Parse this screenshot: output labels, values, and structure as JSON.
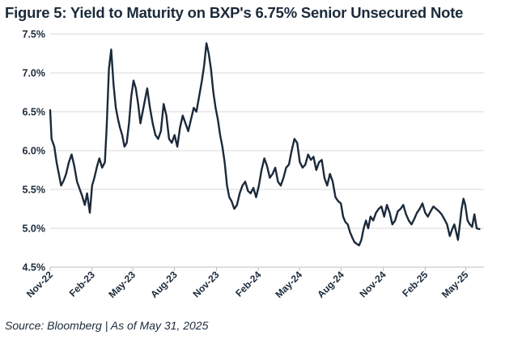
{
  "chart_data": {
    "type": "line",
    "title": "Figure 5: Yield to Maturity on BXP's 6.75% Senior Unsecured Note",
    "source": "Source: Bloomberg | As of May 31, 2025",
    "xlabel": "",
    "ylabel": "",
    "ylim": [
      4.5,
      7.5
    ],
    "yticks": [
      4.5,
      5.0,
      5.5,
      6.0,
      6.5,
      7.0,
      7.5
    ],
    "ytick_labels": [
      "4.5%",
      "5.0%",
      "5.5%",
      "6.0%",
      "6.5%",
      "7.0%",
      "7.5%"
    ],
    "xlim": [
      "2022-11-01",
      "2025-06-10"
    ],
    "xtick_dates": [
      "2022-11-01",
      "2023-02-01",
      "2023-05-01",
      "2023-08-01",
      "2023-11-01",
      "2024-02-01",
      "2024-05-01",
      "2024-08-01",
      "2024-11-01",
      "2025-02-01",
      "2025-05-01"
    ],
    "xtick_labels": [
      "Nov-22",
      "Feb-23",
      "May-23",
      "Aug-23",
      "Nov-23",
      "Feb-24",
      "May-24",
      "Aug-24",
      "Nov-24",
      "Feb-25",
      "May-25"
    ],
    "grid": "horizontal",
    "legend": "none",
    "line_color": "#1b2a3a",
    "series": [
      {
        "x": [
          "2022-11-01",
          "2022-11-04",
          "2022-11-10",
          "2022-11-15",
          "2022-11-20",
          "2022-11-25",
          "2022-12-01",
          "2022-12-06",
          "2022-12-12",
          "2022-12-18",
          "2022-12-24",
          "2022-12-30",
          "2023-01-05",
          "2023-01-10",
          "2023-01-16",
          "2023-01-21",
          "2023-01-27",
          "2023-02-01",
          "2023-02-06",
          "2023-02-12",
          "2023-02-17",
          "2023-02-23",
          "2023-03-01",
          "2023-03-05",
          "2023-03-10",
          "2023-03-15",
          "2023-03-20",
          "2023-03-25",
          "2023-03-30",
          "2023-04-03",
          "2023-04-08",
          "2023-04-13",
          "2023-04-18",
          "2023-04-23",
          "2023-04-28",
          "2023-05-03",
          "2023-05-08",
          "2023-05-13",
          "2023-05-18",
          "2023-05-23",
          "2023-05-28",
          "2023-06-02",
          "2023-06-08",
          "2023-06-14",
          "2023-06-20",
          "2023-06-26",
          "2023-07-02",
          "2023-07-08",
          "2023-07-14",
          "2023-07-20",
          "2023-07-26",
          "2023-08-01",
          "2023-08-07",
          "2023-08-13",
          "2023-08-19",
          "2023-08-25",
          "2023-08-31",
          "2023-09-06",
          "2023-09-12",
          "2023-09-18",
          "2023-09-24",
          "2023-09-30",
          "2023-10-05",
          "2023-10-10",
          "2023-10-15",
          "2023-10-20",
          "2023-10-25",
          "2023-10-30",
          "2023-11-04",
          "2023-11-09",
          "2023-11-14",
          "2023-11-19",
          "2023-11-24",
          "2023-11-29",
          "2023-12-04",
          "2023-12-10",
          "2023-12-16",
          "2023-12-22",
          "2023-12-28",
          "2024-01-03",
          "2024-01-09",
          "2024-01-15",
          "2024-01-21",
          "2024-01-27",
          "2024-02-02",
          "2024-02-08",
          "2024-02-14",
          "2024-02-20",
          "2024-02-26",
          "2024-03-03",
          "2024-03-09",
          "2024-03-15",
          "2024-03-21",
          "2024-03-27",
          "2024-04-02",
          "2024-04-08",
          "2024-04-14",
          "2024-04-20",
          "2024-04-26",
          "2024-05-02",
          "2024-05-08",
          "2024-05-14",
          "2024-05-20",
          "2024-05-26",
          "2024-06-01",
          "2024-06-07",
          "2024-06-13",
          "2024-06-19",
          "2024-06-25",
          "2024-07-01",
          "2024-07-07",
          "2024-07-13",
          "2024-07-19",
          "2024-07-25",
          "2024-07-31",
          "2024-08-05",
          "2024-08-10",
          "2024-08-15",
          "2024-08-20",
          "2024-08-25",
          "2024-08-30",
          "2024-09-04",
          "2024-09-09",
          "2024-09-14",
          "2024-09-19",
          "2024-09-24",
          "2024-09-29",
          "2024-10-04",
          "2024-10-10",
          "2024-10-16",
          "2024-10-22",
          "2024-10-28",
          "2024-11-03",
          "2024-11-09",
          "2024-11-15",
          "2024-11-21",
          "2024-11-27",
          "2024-12-03",
          "2024-12-09",
          "2024-12-15",
          "2024-12-21",
          "2024-12-27",
          "2025-01-02",
          "2025-01-08",
          "2025-01-14",
          "2025-01-20",
          "2025-01-26",
          "2025-02-01",
          "2025-02-07",
          "2025-02-13",
          "2025-02-19",
          "2025-02-25",
          "2025-03-03",
          "2025-03-09",
          "2025-03-15",
          "2025-03-21",
          "2025-03-27",
          "2025-04-02",
          "2025-04-06",
          "2025-04-10",
          "2025-04-14",
          "2025-04-18",
          "2025-04-22",
          "2025-04-26",
          "2025-04-30",
          "2025-05-05",
          "2025-05-10",
          "2025-05-15",
          "2025-05-20",
          "2025-05-25",
          "2025-05-31"
        ],
        "y": [
          6.52,
          6.15,
          6.05,
          5.85,
          5.7,
          5.55,
          5.62,
          5.7,
          5.85,
          5.95,
          5.8,
          5.6,
          5.5,
          5.42,
          5.3,
          5.45,
          5.2,
          5.55,
          5.65,
          5.8,
          5.9,
          5.78,
          5.85,
          6.3,
          7.05,
          7.3,
          6.85,
          6.55,
          6.4,
          6.3,
          6.2,
          6.05,
          6.1,
          6.35,
          6.7,
          6.9,
          6.8,
          6.6,
          6.35,
          6.5,
          6.65,
          6.8,
          6.55,
          6.35,
          6.2,
          6.15,
          6.25,
          6.6,
          6.45,
          6.15,
          6.1,
          6.2,
          6.05,
          6.3,
          6.45,
          6.35,
          6.25,
          6.4,
          6.55,
          6.5,
          6.7,
          6.9,
          7.1,
          7.38,
          7.25,
          7.05,
          6.75,
          6.55,
          6.4,
          6.2,
          6.05,
          5.85,
          5.55,
          5.4,
          5.35,
          5.25,
          5.3,
          5.45,
          5.55,
          5.6,
          5.48,
          5.45,
          5.52,
          5.4,
          5.55,
          5.75,
          5.9,
          5.8,
          5.65,
          5.7,
          5.78,
          5.6,
          5.55,
          5.65,
          5.78,
          5.82,
          6.0,
          6.15,
          6.1,
          5.85,
          5.78,
          5.82,
          5.95,
          5.88,
          5.92,
          5.75,
          5.85,
          5.88,
          5.65,
          5.55,
          5.7,
          5.6,
          5.4,
          5.35,
          5.32,
          5.15,
          5.08,
          5.05,
          4.95,
          4.88,
          4.82,
          4.8,
          4.78,
          4.85,
          5.0,
          5.1,
          5.0,
          5.15,
          5.1,
          5.2,
          5.25,
          5.28,
          5.15,
          5.3,
          5.2,
          5.05,
          5.1,
          5.22,
          5.25,
          5.3,
          5.18,
          5.1,
          5.05,
          5.12,
          5.2,
          5.25,
          5.32,
          5.2,
          5.15,
          5.22,
          5.28,
          5.25,
          5.22,
          5.18,
          5.12,
          5.05,
          4.9,
          5.0,
          5.05,
          4.95,
          4.85,
          5.05,
          5.25,
          5.38,
          5.3,
          5.1,
          5.05,
          5.02,
          5.18,
          5.0,
          4.99
        ]
      }
    ]
  }
}
